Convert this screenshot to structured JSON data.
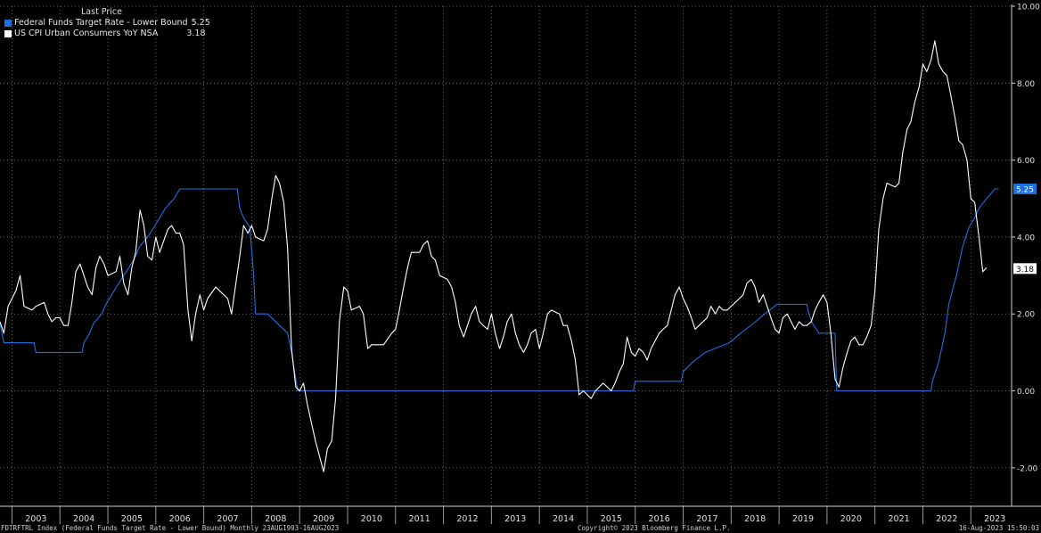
{
  "legend": {
    "header": "Last Price",
    "items": [
      {
        "label": "Federal Funds Target Rate - Lower Bound",
        "value": "5.25",
        "color": "#1e6fe0"
      },
      {
        "label": "US CPI Urban Consumers YoY NSA",
        "value": "3.18",
        "color": "#ffffff"
      }
    ]
  },
  "footer": {
    "left": "FDTRFTRL Index (Federal Funds Target Rate - Lower Bound)  Monthly 23AUG1993-16AUG2023",
    "center": "Copyright© 2023 Bloomberg Finance L.P.",
    "right": "16-Aug-2023 15:50:03"
  },
  "chart_data": {
    "type": "line",
    "ylim": [
      -3,
      10
    ],
    "yticks": [
      "-2.00",
      "0.00",
      "2.00",
      "4.00",
      "6.00",
      "8.00",
      "10.00"
    ],
    "years": [
      "2003",
      "2004",
      "2005",
      "2006",
      "2007",
      "2008",
      "2009",
      "2010",
      "2011",
      "2012",
      "2013",
      "2014",
      "2015",
      "2016",
      "2017",
      "2018",
      "2019",
      "2020",
      "2021",
      "2022",
      "2023"
    ],
    "grid": true,
    "last_value_labels": [
      {
        "value": "5.25",
        "bg": "#1e6fe0",
        "fg": "#ffffff"
      },
      {
        "value": "3.18",
        "bg": "#ffffff",
        "fg": "#000000"
      }
    ],
    "series": [
      {
        "name": "Federal Funds Target Rate - Lower Bound",
        "color": "#1e6fe0",
        "points": [
          [
            2002.75,
            1.75
          ],
          [
            2002.83,
            1.25
          ],
          [
            2003.46,
            1.25
          ],
          [
            2003.5,
            1.0
          ],
          [
            2004.46,
            1.0
          ],
          [
            2004.5,
            1.25
          ],
          [
            2004.62,
            1.5
          ],
          [
            2004.7,
            1.75
          ],
          [
            2004.87,
            2.0
          ],
          [
            2004.96,
            2.25
          ],
          [
            2005.08,
            2.5
          ],
          [
            2005.2,
            2.75
          ],
          [
            2005.33,
            3.0
          ],
          [
            2005.46,
            3.25
          ],
          [
            2005.58,
            3.5
          ],
          [
            2005.66,
            3.75
          ],
          [
            2005.83,
            4.0
          ],
          [
            2005.96,
            4.25
          ],
          [
            2006.08,
            4.5
          ],
          [
            2006.2,
            4.75
          ],
          [
            2006.38,
            5.0
          ],
          [
            2006.5,
            5.25
          ],
          [
            2007.7,
            5.25
          ],
          [
            2007.75,
            4.75
          ],
          [
            2007.83,
            4.5
          ],
          [
            2007.96,
            4.25
          ],
          [
            2008.04,
            3.0
          ],
          [
            2008.08,
            2.0
          ],
          [
            2008.33,
            2.0
          ],
          [
            2008.75,
            1.5
          ],
          [
            2008.83,
            1.0
          ],
          [
            2008.96,
            0.0
          ],
          [
            2015.96,
            0.0
          ],
          [
            2016.0,
            0.25
          ],
          [
            2016.96,
            0.25
          ],
          [
            2017.0,
            0.5
          ],
          [
            2017.2,
            0.75
          ],
          [
            2017.46,
            1.0
          ],
          [
            2017.96,
            1.25
          ],
          [
            2018.2,
            1.5
          ],
          [
            2018.46,
            1.75
          ],
          [
            2018.7,
            2.0
          ],
          [
            2018.96,
            2.25
          ],
          [
            2019.58,
            2.25
          ],
          [
            2019.62,
            2.0
          ],
          [
            2019.7,
            1.75
          ],
          [
            2019.83,
            1.5
          ],
          [
            2020.17,
            1.5
          ],
          [
            2020.2,
            0.0
          ],
          [
            2022.17,
            0.0
          ],
          [
            2022.2,
            0.25
          ],
          [
            2022.33,
            0.75
          ],
          [
            2022.46,
            1.5
          ],
          [
            2022.54,
            2.25
          ],
          [
            2022.7,
            3.0
          ],
          [
            2022.83,
            3.75
          ],
          [
            2022.96,
            4.25
          ],
          [
            2023.08,
            4.5
          ],
          [
            2023.17,
            4.75
          ],
          [
            2023.33,
            5.0
          ],
          [
            2023.5,
            5.25
          ],
          [
            2023.58,
            5.25
          ]
        ]
      },
      {
        "name": "US CPI Urban Consumers YoY NSA",
        "color": "#ffffff",
        "points": [
          [
            2002.75,
            1.8
          ],
          [
            2002.83,
            1.5
          ],
          [
            2002.92,
            2.2
          ],
          [
            2003.08,
            2.6
          ],
          [
            2003.17,
            3.0
          ],
          [
            2003.25,
            2.2
          ],
          [
            2003.42,
            2.1
          ],
          [
            2003.5,
            2.2
          ],
          [
            2003.67,
            2.3
          ],
          [
            2003.75,
            2.0
          ],
          [
            2003.83,
            1.8
          ],
          [
            2003.92,
            1.9
          ],
          [
            2004.0,
            1.9
          ],
          [
            2004.08,
            1.7
          ],
          [
            2004.17,
            1.7
          ],
          [
            2004.25,
            2.3
          ],
          [
            2004.33,
            3.1
          ],
          [
            2004.42,
            3.3
          ],
          [
            2004.5,
            3.0
          ],
          [
            2004.58,
            2.7
          ],
          [
            2004.67,
            2.5
          ],
          [
            2004.75,
            3.2
          ],
          [
            2004.83,
            3.5
          ],
          [
            2004.92,
            3.3
          ],
          [
            2005.0,
            3.0
          ],
          [
            2005.17,
            3.1
          ],
          [
            2005.25,
            3.5
          ],
          [
            2005.33,
            2.8
          ],
          [
            2005.42,
            2.5
          ],
          [
            2005.5,
            3.2
          ],
          [
            2005.58,
            3.6
          ],
          [
            2005.67,
            4.7
          ],
          [
            2005.75,
            4.3
          ],
          [
            2005.83,
            3.5
          ],
          [
            2005.92,
            3.4
          ],
          [
            2006.0,
            4.0
          ],
          [
            2006.08,
            3.6
          ],
          [
            2006.25,
            4.2
          ],
          [
            2006.33,
            4.3
          ],
          [
            2006.42,
            4.1
          ],
          [
            2006.5,
            4.1
          ],
          [
            2006.58,
            3.8
          ],
          [
            2006.67,
            2.1
          ],
          [
            2006.75,
            1.3
          ],
          [
            2006.83,
            2.0
          ],
          [
            2006.92,
            2.5
          ],
          [
            2007.0,
            2.1
          ],
          [
            2007.08,
            2.4
          ],
          [
            2007.25,
            2.7
          ],
          [
            2007.33,
            2.6
          ],
          [
            2007.5,
            2.4
          ],
          [
            2007.58,
            2.0
          ],
          [
            2007.67,
            2.8
          ],
          [
            2007.75,
            3.5
          ],
          [
            2007.83,
            4.3
          ],
          [
            2007.92,
            4.1
          ],
          [
            2008.0,
            4.3
          ],
          [
            2008.08,
            4.0
          ],
          [
            2008.25,
            3.9
          ],
          [
            2008.33,
            4.2
          ],
          [
            2008.42,
            5.0
          ],
          [
            2008.5,
            5.6
          ],
          [
            2008.58,
            5.4
          ],
          [
            2008.67,
            4.9
          ],
          [
            2008.75,
            3.7
          ],
          [
            2008.83,
            1.1
          ],
          [
            2008.92,
            0.1
          ],
          [
            2009.0,
            0.0
          ],
          [
            2009.08,
            0.2
          ],
          [
            2009.17,
            -0.4
          ],
          [
            2009.33,
            -1.3
          ],
          [
            2009.5,
            -2.1
          ],
          [
            2009.58,
            -1.5
          ],
          [
            2009.67,
            -1.3
          ],
          [
            2009.75,
            -0.2
          ],
          [
            2009.83,
            1.8
          ],
          [
            2009.92,
            2.7
          ],
          [
            2010.0,
            2.6
          ],
          [
            2010.08,
            2.1
          ],
          [
            2010.25,
            2.2
          ],
          [
            2010.33,
            2.0
          ],
          [
            2010.42,
            1.1
          ],
          [
            2010.5,
            1.2
          ],
          [
            2010.58,
            1.2
          ],
          [
            2010.75,
            1.2
          ],
          [
            2010.92,
            1.5
          ],
          [
            2011.0,
            1.6
          ],
          [
            2011.08,
            2.1
          ],
          [
            2011.17,
            2.7
          ],
          [
            2011.25,
            3.2
          ],
          [
            2011.33,
            3.6
          ],
          [
            2011.5,
            3.6
          ],
          [
            2011.58,
            3.8
          ],
          [
            2011.67,
            3.9
          ],
          [
            2011.75,
            3.5
          ],
          [
            2011.83,
            3.4
          ],
          [
            2011.92,
            3.0
          ],
          [
            2012.08,
            2.9
          ],
          [
            2012.17,
            2.7
          ],
          [
            2012.25,
            2.3
          ],
          [
            2012.33,
            1.7
          ],
          [
            2012.42,
            1.4
          ],
          [
            2012.5,
            1.7
          ],
          [
            2012.58,
            2.0
          ],
          [
            2012.67,
            2.2
          ],
          [
            2012.75,
            1.8
          ],
          [
            2012.83,
            1.7
          ],
          [
            2012.92,
            1.6
          ],
          [
            2013.0,
            2.0
          ],
          [
            2013.08,
            1.5
          ],
          [
            2013.17,
            1.1
          ],
          [
            2013.25,
            1.4
          ],
          [
            2013.33,
            1.8
          ],
          [
            2013.42,
            2.0
          ],
          [
            2013.5,
            1.5
          ],
          [
            2013.58,
            1.2
          ],
          [
            2013.67,
            1.0
          ],
          [
            2013.75,
            1.2
          ],
          [
            2013.83,
            1.5
          ],
          [
            2013.92,
            1.6
          ],
          [
            2014.0,
            1.1
          ],
          [
            2014.08,
            1.5
          ],
          [
            2014.17,
            2.0
          ],
          [
            2014.25,
            2.1
          ],
          [
            2014.42,
            2.0
          ],
          [
            2014.5,
            1.7
          ],
          [
            2014.58,
            1.7
          ],
          [
            2014.67,
            1.3
          ],
          [
            2014.75,
            0.8
          ],
          [
            2014.83,
            -0.1
          ],
          [
            2014.92,
            0.0
          ],
          [
            2015.0,
            -0.1
          ],
          [
            2015.08,
            -0.2
          ],
          [
            2015.17,
            0.0
          ],
          [
            2015.33,
            0.2
          ],
          [
            2015.5,
            0.0
          ],
          [
            2015.58,
            0.2
          ],
          [
            2015.67,
            0.5
          ],
          [
            2015.75,
            0.7
          ],
          [
            2015.83,
            1.4
          ],
          [
            2015.92,
            1.0
          ],
          [
            2016.0,
            0.9
          ],
          [
            2016.08,
            1.1
          ],
          [
            2016.17,
            1.0
          ],
          [
            2016.25,
            0.8
          ],
          [
            2016.33,
            1.1
          ],
          [
            2016.5,
            1.5
          ],
          [
            2016.58,
            1.6
          ],
          [
            2016.67,
            1.7
          ],
          [
            2016.75,
            2.1
          ],
          [
            2016.83,
            2.5
          ],
          [
            2016.92,
            2.7
          ],
          [
            2017.0,
            2.4
          ],
          [
            2017.08,
            2.2
          ],
          [
            2017.17,
            1.9
          ],
          [
            2017.25,
            1.6
          ],
          [
            2017.33,
            1.7
          ],
          [
            2017.5,
            1.9
          ],
          [
            2017.58,
            2.2
          ],
          [
            2017.67,
            2.0
          ],
          [
            2017.75,
            2.2
          ],
          [
            2017.83,
            2.1
          ],
          [
            2017.92,
            2.1
          ],
          [
            2018.0,
            2.2
          ],
          [
            2018.17,
            2.4
          ],
          [
            2018.25,
            2.5
          ],
          [
            2018.33,
            2.8
          ],
          [
            2018.42,
            2.9
          ],
          [
            2018.5,
            2.7
          ],
          [
            2018.58,
            2.3
          ],
          [
            2018.67,
            2.5
          ],
          [
            2018.75,
            2.2
          ],
          [
            2018.83,
            1.9
          ],
          [
            2018.92,
            1.6
          ],
          [
            2019.0,
            1.5
          ],
          [
            2019.08,
            1.9
          ],
          [
            2019.17,
            2.0
          ],
          [
            2019.25,
            1.8
          ],
          [
            2019.33,
            1.6
          ],
          [
            2019.42,
            1.8
          ],
          [
            2019.5,
            1.7
          ],
          [
            2019.58,
            1.7
          ],
          [
            2019.67,
            1.8
          ],
          [
            2019.75,
            2.1
          ],
          [
            2019.83,
            2.3
          ],
          [
            2019.92,
            2.5
          ],
          [
            2020.0,
            2.3
          ],
          [
            2020.08,
            1.5
          ],
          [
            2020.17,
            0.3
          ],
          [
            2020.25,
            0.1
          ],
          [
            2020.33,
            0.6
          ],
          [
            2020.42,
            1.0
          ],
          [
            2020.5,
            1.3
          ],
          [
            2020.58,
            1.4
          ],
          [
            2020.67,
            1.2
          ],
          [
            2020.75,
            1.2
          ],
          [
            2020.83,
            1.4
          ],
          [
            2020.92,
            1.7
          ],
          [
            2021.0,
            2.6
          ],
          [
            2021.08,
            4.2
          ],
          [
            2021.17,
            5.0
          ],
          [
            2021.25,
            5.4
          ],
          [
            2021.42,
            5.3
          ],
          [
            2021.5,
            5.4
          ],
          [
            2021.58,
            6.2
          ],
          [
            2021.67,
            6.8
          ],
          [
            2021.75,
            7.0
          ],
          [
            2021.83,
            7.5
          ],
          [
            2021.92,
            7.9
          ],
          [
            2022.0,
            8.5
          ],
          [
            2022.08,
            8.3
          ],
          [
            2022.17,
            8.6
          ],
          [
            2022.25,
            9.1
          ],
          [
            2022.33,
            8.5
          ],
          [
            2022.42,
            8.3
          ],
          [
            2022.5,
            8.2
          ],
          [
            2022.58,
            7.7
          ],
          [
            2022.67,
            7.1
          ],
          [
            2022.75,
            6.5
          ],
          [
            2022.83,
            6.4
          ],
          [
            2022.92,
            6.0
          ],
          [
            2023.0,
            5.0
          ],
          [
            2023.08,
            4.9
          ],
          [
            2023.17,
            4.0
          ],
          [
            2023.25,
            3.1
          ],
          [
            2023.33,
            3.2
          ]
        ]
      }
    ]
  }
}
